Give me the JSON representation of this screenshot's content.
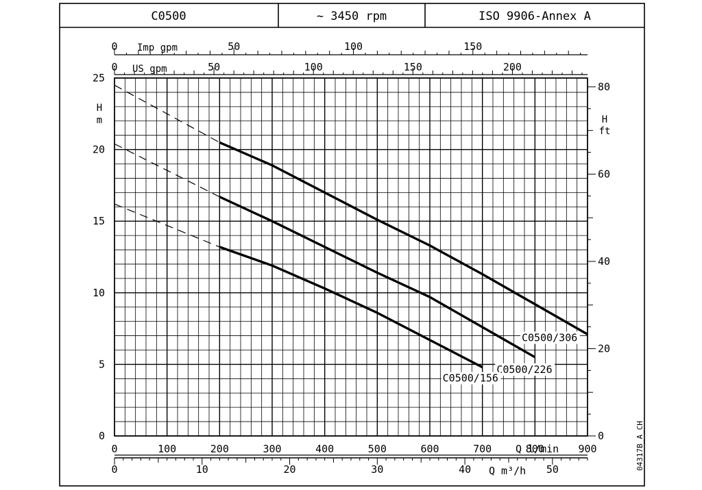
{
  "header": {
    "model": "C0500",
    "speed": "~ 3450 rpm",
    "standard": "ISO 9906-Annex A"
  },
  "axes": {
    "q_lmin_label": "Q l/min",
    "q_m3h_label": "Q m³/h",
    "us_gpm_label": "US gpm",
    "imp_gpm_label": "Imp gpm",
    "h_m_label": [
      "H",
      "m"
    ],
    "h_ft_label": [
      "H",
      "ft"
    ]
  },
  "ref_code": "04317B_A_CH",
  "chart_data": {
    "type": "line",
    "grid": true,
    "x": {
      "unit": "l/min",
      "range": [
        0,
        900
      ],
      "ticks": [
        0,
        100,
        200,
        300,
        400,
        500,
        600,
        700,
        800,
        900
      ],
      "tick_labels": [
        "0",
        "100",
        "200",
        "300",
        "400",
        "500",
        "600",
        "700",
        "800",
        "900"
      ]
    },
    "x_secondary": [
      {
        "unit": "m³/h",
        "factor": 0.06,
        "ticks": [
          0,
          10,
          20,
          30,
          40,
          50
        ],
        "tick_labels": [
          "0",
          "10",
          "20",
          "30",
          "40",
          "50"
        ]
      },
      {
        "unit": "US gpm",
        "factor": 0.264172,
        "ticks": [
          0,
          50,
          100,
          150,
          200
        ],
        "tick_labels": [
          "0",
          "50",
          "100",
          "150",
          "200"
        ]
      },
      {
        "unit": "Imp gpm",
        "factor": 0.219969,
        "ticks": [
          0,
          50,
          100,
          150
        ],
        "tick_labels": [
          "0",
          "50",
          "100",
          "150"
        ]
      }
    ],
    "y": {
      "unit": "m",
      "range": [
        0,
        25
      ],
      "ticks": [
        0,
        5,
        10,
        15,
        20,
        25
      ],
      "tick_labels": [
        "0",
        "5",
        "10",
        "15",
        "20",
        "25"
      ]
    },
    "y_secondary": {
      "unit": "ft",
      "factor": 3.28084,
      "ticks": [
        0,
        20,
        40,
        60,
        80
      ],
      "tick_labels": [
        "0",
        "20",
        "40",
        "60",
        "80"
      ]
    },
    "series": [
      {
        "name": "C0500/306",
        "dashed_points": [
          [
            0,
            24.5
          ],
          [
            200,
            20.5
          ]
        ],
        "points": [
          [
            200,
            20.5
          ],
          [
            300,
            18.9
          ],
          [
            400,
            17.0
          ],
          [
            500,
            15.1
          ],
          [
            600,
            13.3
          ],
          [
            700,
            11.3
          ],
          [
            800,
            9.2
          ],
          [
            900,
            7.1
          ]
        ]
      },
      {
        "name": "C0500/226",
        "dashed_points": [
          [
            0,
            20.4
          ],
          [
            200,
            16.7
          ]
        ],
        "points": [
          [
            200,
            16.7
          ],
          [
            300,
            15.0
          ],
          [
            400,
            13.2
          ],
          [
            500,
            11.4
          ],
          [
            600,
            9.7
          ],
          [
            700,
            7.6
          ],
          [
            800,
            5.5
          ]
        ]
      },
      {
        "name": "C0500/156",
        "dashed_points": [
          [
            0,
            16.2
          ],
          [
            200,
            13.2
          ]
        ],
        "points": [
          [
            200,
            13.2
          ],
          [
            300,
            11.9
          ],
          [
            400,
            10.3
          ],
          [
            500,
            8.6
          ],
          [
            600,
            6.7
          ],
          [
            700,
            4.8
          ]
        ]
      }
    ]
  }
}
